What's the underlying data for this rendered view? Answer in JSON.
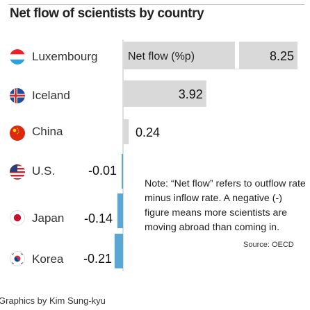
{
  "title": "Net flow of scientists by country",
  "header_label": "Net flow (%p)",
  "note": "Note: “Net flow” refers to outflow rate minus inflow rate. A negative (-) figure means more scientists are moving abroad than coming in.",
  "source": "Source: OECD",
  "credit": "Graphics by Kim Sung-kyu",
  "colors": {
    "positive_bar": "#d9d9d9",
    "negative_bar": "#5aa6d6",
    "axis": "#bdbdbd",
    "text": "#222222"
  },
  "chart_data": {
    "type": "bar",
    "orientation": "horizontal",
    "categories": [
      "Luxembourg",
      "Iceland",
      "China",
      "U.S.",
      "Japan",
      "Korea"
    ],
    "values": [
      8.25,
      3.92,
      0.24,
      -0.01,
      -0.14,
      -0.21
    ],
    "value_labels": [
      "8.25",
      "3.92",
      "0.24",
      "-0.01",
      "-0.14",
      "-0.21"
    ],
    "flags": [
      "luxembourg-flag-icon",
      "iceland-flag-icon",
      "china-flag-icon",
      "us-flag-icon",
      "japan-flag-icon",
      "korea-flag-icon"
    ],
    "xlim": [
      -0.21,
      8.25
    ]
  }
}
